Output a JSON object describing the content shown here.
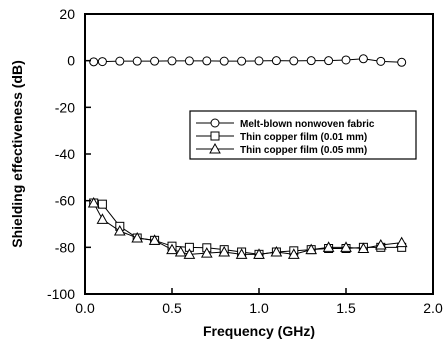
{
  "chart_data": {
    "type": "line",
    "title": "",
    "xlabel": "Frequency (GHz)",
    "ylabel": "Shielding effectiveness (dB)",
    "xlim": [
      0.0,
      2.0
    ],
    "ylim": [
      -100,
      20
    ],
    "x_ticks": [
      "0.0",
      "0.5",
      "1.0",
      "1.5",
      "2.0"
    ],
    "y_ticks": [
      "20",
      "0",
      "-20",
      "-40",
      "-60",
      "-80",
      "-100"
    ],
    "grid": false,
    "legend_position": "right",
    "series": [
      {
        "name": "Melt-blown nonwoven fabric",
        "marker": "circle",
        "x": [
          0.05,
          0.1,
          0.2,
          0.3,
          0.4,
          0.5,
          0.6,
          0.7,
          0.8,
          0.9,
          1.0,
          1.1,
          1.2,
          1.3,
          1.4,
          1.5,
          1.6,
          1.7,
          1.82
        ],
        "y": [
          -0.5,
          -0.4,
          -0.2,
          -0.2,
          -0.2,
          -0.1,
          -0.1,
          -0.1,
          -0.2,
          -0.2,
          -0.1,
          0.0,
          -0.1,
          0.0,
          0.0,
          0.3,
          0.8,
          -0.3,
          -0.7
        ]
      },
      {
        "name": "Thin copper film (0.01 mm)",
        "marker": "square",
        "x": [
          0.05,
          0.1,
          0.2,
          0.3,
          0.4,
          0.5,
          0.6,
          0.7,
          0.8,
          0.9,
          1.0,
          1.1,
          1.2,
          1.3,
          1.4,
          1.5,
          1.6,
          1.7,
          1.82
        ],
        "y": [
          -61,
          -61.5,
          -71,
          -76,
          -77,
          -79.5,
          -80,
          -80.2,
          -81,
          -82,
          -83,
          -82,
          -81.5,
          -81,
          -80.5,
          -80.5,
          -80,
          -80,
          -80
        ]
      },
      {
        "name": "Thin copper film (0.05 mm)",
        "marker": "triangle",
        "x": [
          0.05,
          0.1,
          0.2,
          0.3,
          0.4,
          0.5,
          0.55,
          0.6,
          0.7,
          0.8,
          0.9,
          1.0,
          1.1,
          1.2,
          1.3,
          1.4,
          1.5,
          1.6,
          1.7,
          1.82
        ],
        "y": [
          -61,
          -68,
          -73,
          -76,
          -77,
          -81,
          -82,
          -83,
          -82.5,
          -82,
          -83,
          -83,
          -82,
          -83,
          -81,
          -80,
          -80,
          -80.5,
          -79,
          -78
        ]
      }
    ]
  }
}
